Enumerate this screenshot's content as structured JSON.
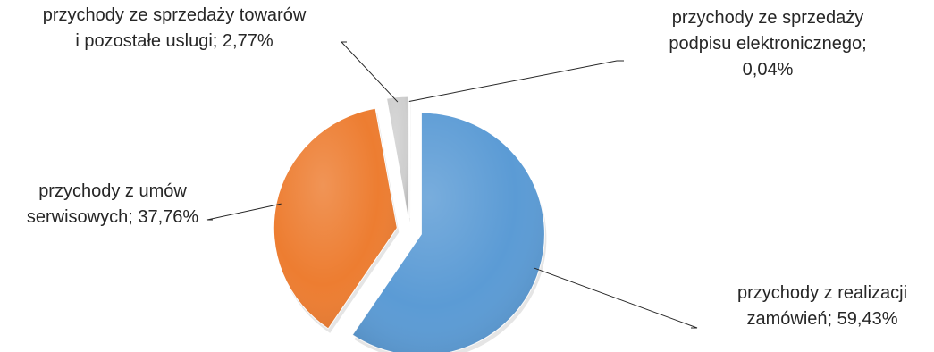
{
  "chart_data": {
    "type": "pie",
    "title": "",
    "slices": [
      {
        "label_lines": [
          "przychody z realizacji",
          "zamówień; 59,43%"
        ],
        "category": "przychody z realizacji zamówień",
        "value": 59.43,
        "color": "#5b9bd5"
      },
      {
        "label_lines": [
          "przychody z umów",
          "serwisowych; 37,76%"
        ],
        "category": "przychody z umów serwisowych",
        "value": 37.76,
        "color": "#ed7d31"
      },
      {
        "label_lines": [
          "przychody ze sprzedaży towarów",
          "i pozostałe uslugi; 2,77%"
        ],
        "category": "przychody ze sprzedaży towarów i pozostałe uslugi",
        "value": 2.77,
        "color": "#cfcfcf"
      },
      {
        "label_lines": [
          "przychody ze sprzedaży",
          "podpisu elektronicznego;",
          "0,04%"
        ],
        "category": "przychody ze sprzedaży podpisu elektronicznego",
        "value": 0.04,
        "color": "#ffc000"
      }
    ],
    "legend": "none",
    "label_style": "category; percentage with leader lines"
  }
}
